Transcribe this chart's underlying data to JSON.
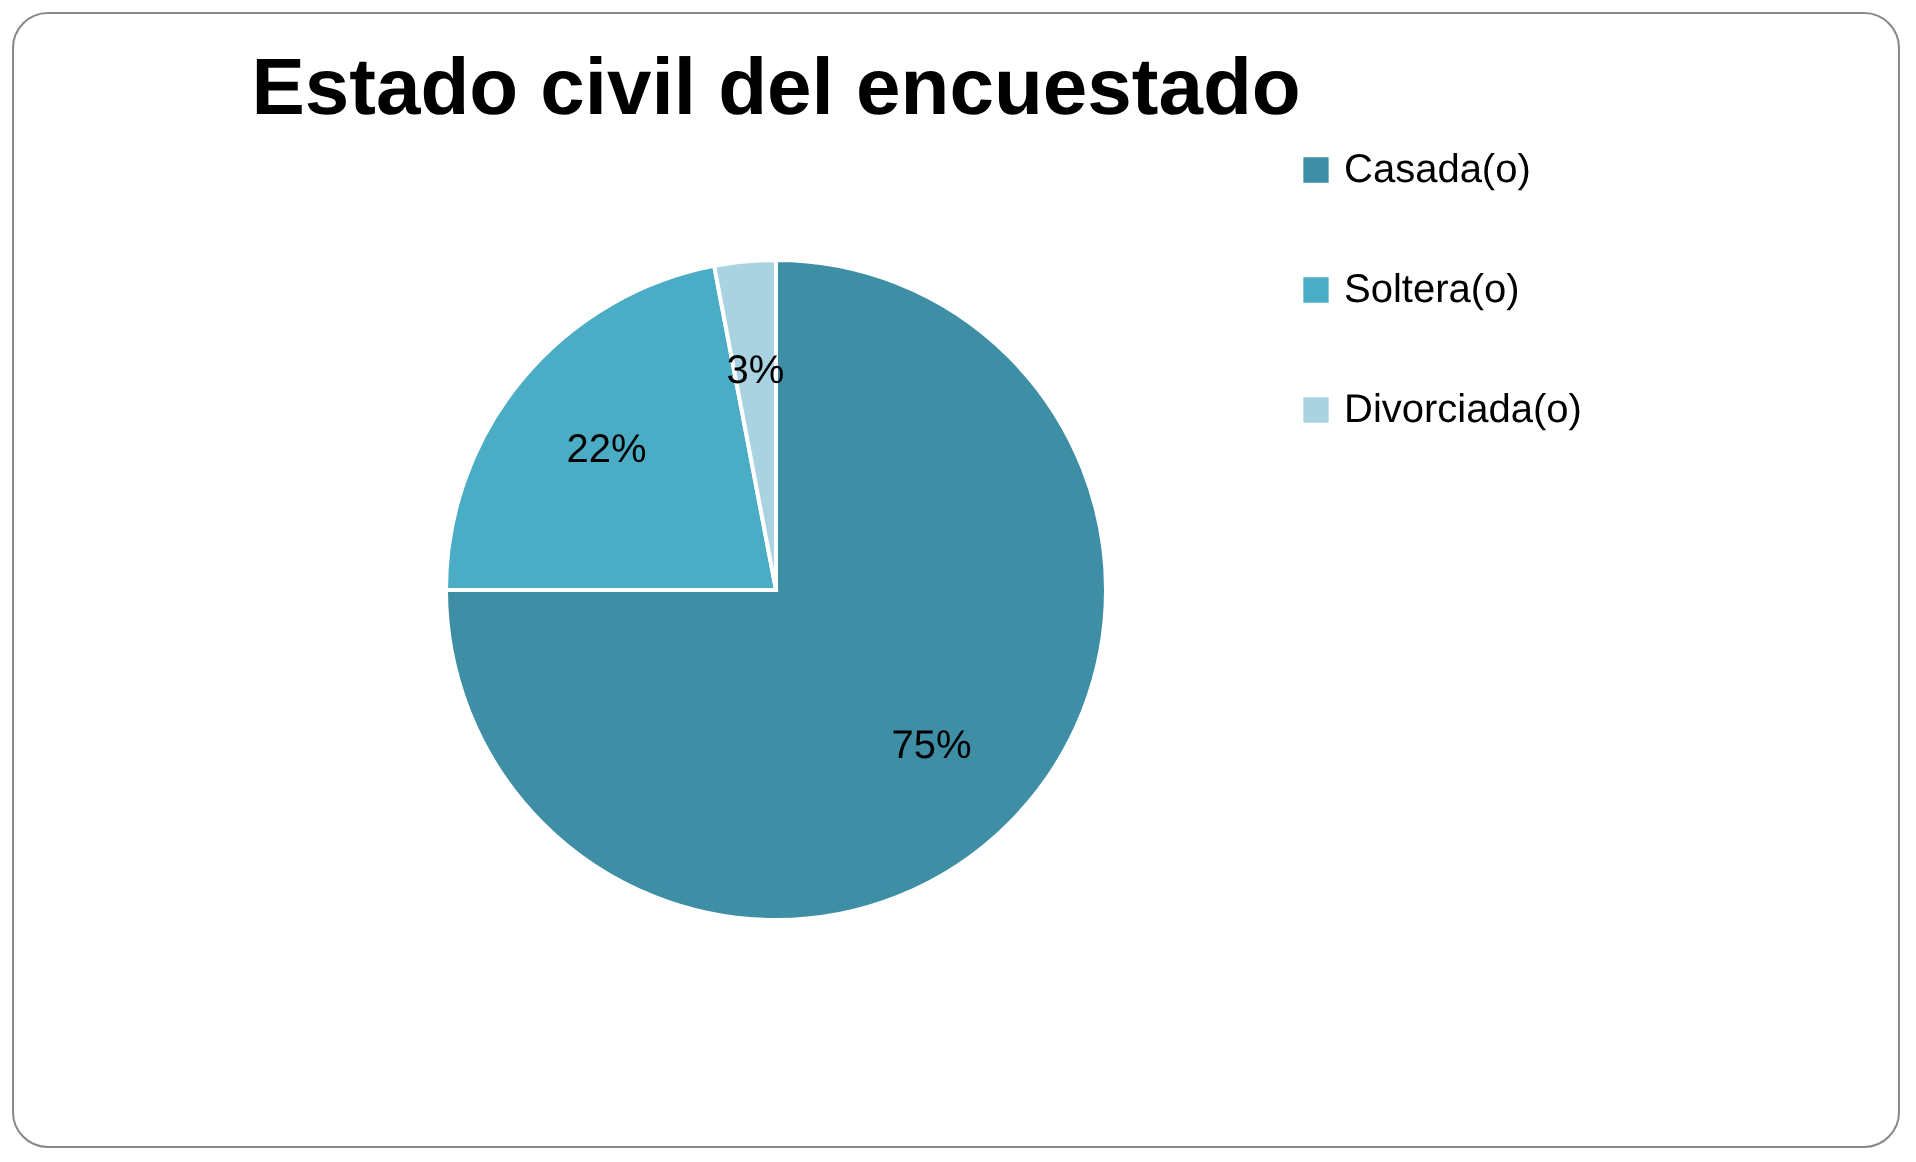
{
  "chart_data": {
    "type": "pie",
    "title": "Estado civil del encuestado",
    "categories": [
      "Casada(o)",
      "Soltera(o)",
      "Divorciada(o)"
    ],
    "values": [
      75,
      22,
      3
    ],
    "colors": [
      "#3e8ea6",
      "#4bacc6",
      "#a9d3e0"
    ],
    "value_labels": [
      "75%",
      "22%",
      "3%"
    ],
    "legend": "right"
  }
}
